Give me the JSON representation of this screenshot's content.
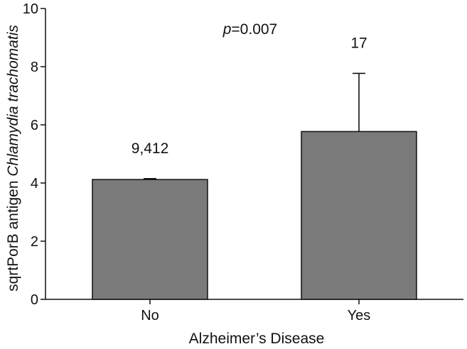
{
  "chart_data": {
    "type": "bar",
    "categories": [
      "No",
      "Yes"
    ],
    "values": [
      4.12,
      5.77
    ],
    "error_upper": [
      0.03,
      2.0
    ],
    "data_labels": [
      "9,412",
      "17"
    ],
    "xlabel": "Alzheimer’s Disease",
    "ylabel_plain": "sqrtPorB antigen ",
    "ylabel_italic": "Chlamydia trachomatis",
    "annotation_italic": "p",
    "annotation_rest": "=0.007",
    "ylim": [
      0,
      10
    ],
    "yticks": [
      "0",
      "2",
      "4",
      "6",
      "8",
      "10"
    ],
    "bar_color": "#7a7a7a",
    "grid": false,
    "legend": "none"
  }
}
